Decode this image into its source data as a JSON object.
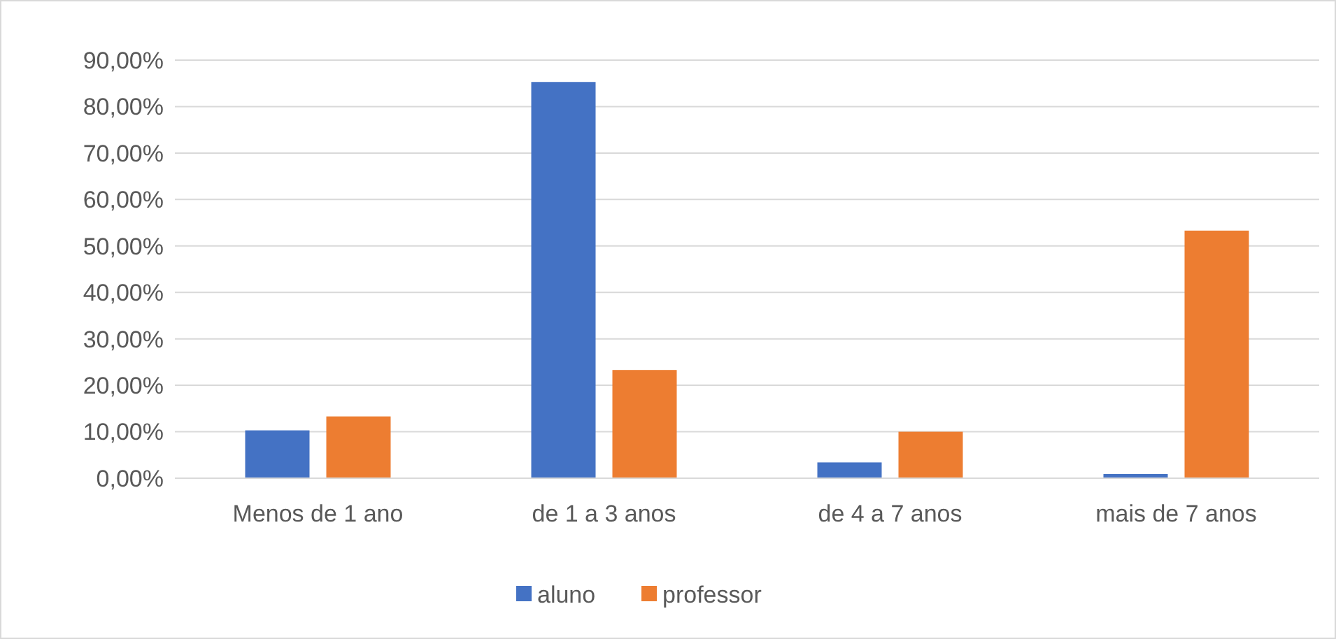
{
  "chart_data": {
    "type": "bar",
    "categories": [
      "Menos de 1 ano",
      "de 1 a 3 anos",
      "de 4 a 7 anos",
      "mais de 7 anos"
    ],
    "series": [
      {
        "name": "aluno",
        "color": "#4472c4",
        "values": [
          10.3,
          85.3,
          3.4,
          0.9
        ]
      },
      {
        "name": "professor",
        "color": "#ed7d31",
        "values": [
          13.3,
          23.3,
          10,
          53.3
        ]
      }
    ],
    "ylim": [
      0,
      90
    ],
    "yticks": [
      {
        "value": 0,
        "label": "0,00%"
      },
      {
        "value": 10,
        "label": "10,00%"
      },
      {
        "value": 20,
        "label": "20,00%"
      },
      {
        "value": 30,
        "label": "30,00%"
      },
      {
        "value": 40,
        "label": "40,00%"
      },
      {
        "value": 50,
        "label": "50,00%"
      },
      {
        "value": 60,
        "label": "60,00%"
      },
      {
        "value": 70,
        "label": "70,00%"
      },
      {
        "value": 80,
        "label": "80,00%"
      },
      {
        "value": 90,
        "label": "90,00%"
      }
    ],
    "grid": "y",
    "legend": "bottom"
  }
}
